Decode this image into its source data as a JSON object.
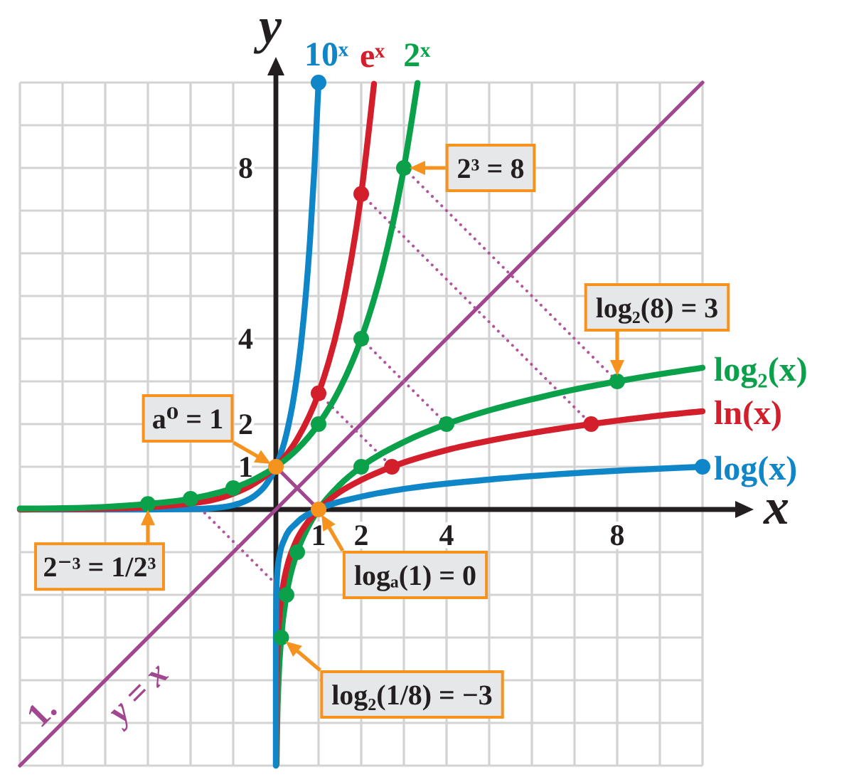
{
  "chart_data": {
    "type": "line",
    "xlabel": "x",
    "ylabel": "y",
    "xlim": [
      -6,
      10
    ],
    "ylim": [
      -6,
      10
    ],
    "xticks": [
      {
        "value": -6,
        "label": null
      },
      {
        "value": -5,
        "label": null
      },
      {
        "value": -4,
        "label": null
      },
      {
        "value": -3,
        "label": null
      },
      {
        "value": -2,
        "label": null
      },
      {
        "value": -1,
        "label": null
      },
      {
        "value": 0,
        "label": null
      },
      1,
      2,
      {
        "value": 3,
        "label": null
      },
      4,
      {
        "value": 5,
        "label": null
      },
      {
        "value": 6,
        "label": null
      },
      {
        "value": 7,
        "label": null
      },
      8,
      {
        "value": 9,
        "label": null
      },
      {
        "value": 10,
        "label": null
      }
    ],
    "yticks": [
      {
        "value": -6,
        "label": null
      },
      {
        "value": -5,
        "label": null
      },
      {
        "value": -4,
        "label": null
      },
      {
        "value": -3,
        "label": null
      },
      {
        "value": -2,
        "label": null
      },
      {
        "value": -1,
        "label": null
      },
      {
        "value": 0,
        "label": null
      },
      1,
      2,
      {
        "value": 3,
        "label": null
      },
      4,
      {
        "value": 5,
        "label": null
      },
      {
        "value": 6,
        "label": null
      },
      {
        "value": 7,
        "label": null
      },
      8,
      {
        "value": 9,
        "label": null
      },
      {
        "value": 10,
        "label": null
      }
    ],
    "grid": true,
    "series": [
      {
        "name": "y = x",
        "color": "#a0478f",
        "x": [
          -6,
          10
        ],
        "values": [
          -6,
          10
        ]
      },
      {
        "color": "#a0478f",
        "x": [
          0,
          1
        ],
        "values": [
          1,
          0
        ]
      },
      {
        "color": "#b0569e",
        "line_style": "dotted",
        "x": [
          3,
          8
        ],
        "values": [
          8,
          3
        ]
      },
      {
        "color": "#b0569e",
        "line_style": "dotted",
        "x": [
          2,
          7.39
        ],
        "values": [
          7.39,
          2
        ]
      },
      {
        "color": "#b0569e",
        "line_style": "dotted",
        "x": [
          2,
          4
        ],
        "values": [
          4,
          2
        ]
      },
      {
        "color": "#b0569e",
        "line_style": "dotted",
        "x": [
          1,
          2.72
        ],
        "values": [
          2.72,
          1
        ]
      },
      {
        "color": "#b0569e",
        "line_style": "dotted",
        "x": [
          -2,
          0.25
        ],
        "values": [
          0.25,
          -2
        ]
      },
      {
        "name": "10ˣ",
        "color": "#0f86c8",
        "x": [
          -6,
          -5,
          -4,
          -3,
          -2,
          -1.5,
          -1,
          -0.75,
          -0.5,
          -0.25,
          0,
          0.1,
          0.2,
          0.3,
          0.4,
          0.5,
          0.6,
          0.7,
          0.8,
          0.9,
          1
        ],
        "values": [
          0,
          0,
          0,
          0,
          0.01,
          0.03,
          0.1,
          0.18,
          0.32,
          0.56,
          1,
          1.26,
          1.58,
          2,
          2.51,
          3.16,
          3.98,
          5.01,
          6.31,
          7.94,
          10
        ]
      },
      {
        "name": "eˣ",
        "color": "#d21f2b",
        "x": [
          -6,
          -5,
          -4,
          -3,
          -2,
          -1.5,
          -1,
          -0.5,
          0,
          0.5,
          1,
          1.5,
          2,
          2.3
        ],
        "values": [
          0,
          0.01,
          0.02,
          0.05,
          0.14,
          0.22,
          0.37,
          0.61,
          1,
          1.65,
          2.72,
          4.48,
          7.39,
          9.97
        ]
      },
      {
        "name": "2ˣ",
        "color": "#0ba14b",
        "x": [
          -6,
          -5,
          -4,
          -3,
          -2,
          -1,
          -0.5,
          0,
          0.5,
          1,
          1.5,
          2,
          2.5,
          3,
          3.32
        ],
        "values": [
          0.02,
          0.03,
          0.06,
          0.13,
          0.25,
          0.5,
          0.71,
          1,
          1.41,
          2,
          2.83,
          4,
          5.66,
          8,
          9.99
        ]
      },
      {
        "name": "log₂(x)",
        "color": "#0ba14b",
        "x": [
          0.016,
          0.03,
          0.0625,
          0.125,
          0.25,
          0.5,
          0.75,
          1,
          1.5,
          2,
          3,
          4,
          5,
          6,
          7,
          8,
          9,
          10
        ],
        "values": [
          -5.97,
          -5.06,
          -4,
          -3,
          -2,
          -1,
          -0.42,
          0,
          0.58,
          1,
          1.58,
          2,
          2.32,
          2.58,
          2.81,
          3,
          3.17,
          3.32
        ]
      },
      {
        "name": "ln(x)",
        "color": "#d21f2b",
        "x": [
          0.0025,
          0.01,
          0.03,
          0.05,
          0.1,
          0.2,
          0.3,
          0.5,
          0.75,
          1,
          1.5,
          2,
          2.72,
          4,
          5,
          6,
          7.39,
          8,
          9,
          10
        ],
        "values": [
          -5.99,
          -4.61,
          -3.51,
          -3,
          -2.3,
          -1.61,
          -1.2,
          -0.69,
          -0.29,
          0,
          0.41,
          0.69,
          1,
          1.39,
          1.61,
          1.79,
          2,
          2.08,
          2.2,
          2.3
        ]
      },
      {
        "name": "log(x)",
        "color": "#0f86c8",
        "x": [
          1e-06,
          1e-05,
          0.0001,
          0.001,
          0.01,
          0.03,
          0.1,
          0.2,
          0.5,
          1,
          2,
          3,
          5,
          7,
          10
        ],
        "values": [
          -6,
          -5,
          -4,
          -3,
          -2,
          -1.52,
          -1,
          -0.7,
          -0.3,
          0,
          0.3,
          0.48,
          0.7,
          0.85,
          1
        ]
      },
      {
        "type": "scatter",
        "marker": "circle",
        "color": "#0ba14b",
        "x": [
          -3,
          -2,
          -1,
          1,
          2,
          3,
          0.125,
          0.25,
          0.5,
          2,
          4,
          8
        ],
        "values": [
          0.13,
          0.25,
          0.5,
          2,
          4,
          8,
          -3,
          -2,
          -1,
          1,
          2,
          3
        ]
      },
      {
        "type": "scatter",
        "marker": "circle",
        "color": "#d21f2b",
        "x": [
          1,
          2,
          2.72,
          7.39
        ],
        "values": [
          2.72,
          7.39,
          1,
          2
        ]
      },
      {
        "type": "scatter",
        "marker": "circle",
        "color": "#0f86c8",
        "x": [
          1,
          10
        ],
        "values": [
          10,
          1
        ]
      },
      {
        "type": "scatter",
        "marker": "circle",
        "color": "#f6921e",
        "x": [
          0,
          1
        ],
        "values": [
          1,
          0
        ]
      }
    ],
    "annotations": [
      {
        "text": "2³ = 8",
        "x": 3,
        "y": 8
      },
      {
        "text": "log₂(8) = 3",
        "x": 8,
        "y": 3
      },
      {
        "text": "a⁰ = 1",
        "x": 0,
        "y": 1
      },
      {
        "text": "2⁻³ = 1/2³",
        "x": -3,
        "y": 0.13
      },
      {
        "text": "logₐ(1) = 0",
        "x": 1,
        "y": 0
      },
      {
        "text": "log₂(1/8) = −3",
        "x": 0.125,
        "y": -3
      },
      "1."
    ]
  }
}
